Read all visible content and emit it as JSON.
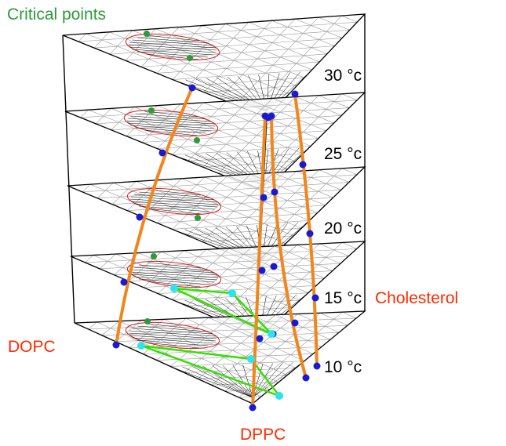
{
  "labels": {
    "critical_points": "Critical points",
    "cholesterol": "Cholesterol",
    "dopc": "DOPC",
    "dppc": "DPPC"
  },
  "temperatures": [
    "30 °c",
    "25 °c",
    "20 °c",
    "15 °c",
    "10 °c"
  ],
  "colors": {
    "critical_points": "#2e9a3a",
    "component_labels": "#ff2a00",
    "boundary": "#f0861c",
    "tie_line_triangle": "#33e000",
    "triangle_vertex": "#2ce3ee",
    "boundary_point": "#1a1ad0",
    "ellipse": "#d82020"
  }
}
